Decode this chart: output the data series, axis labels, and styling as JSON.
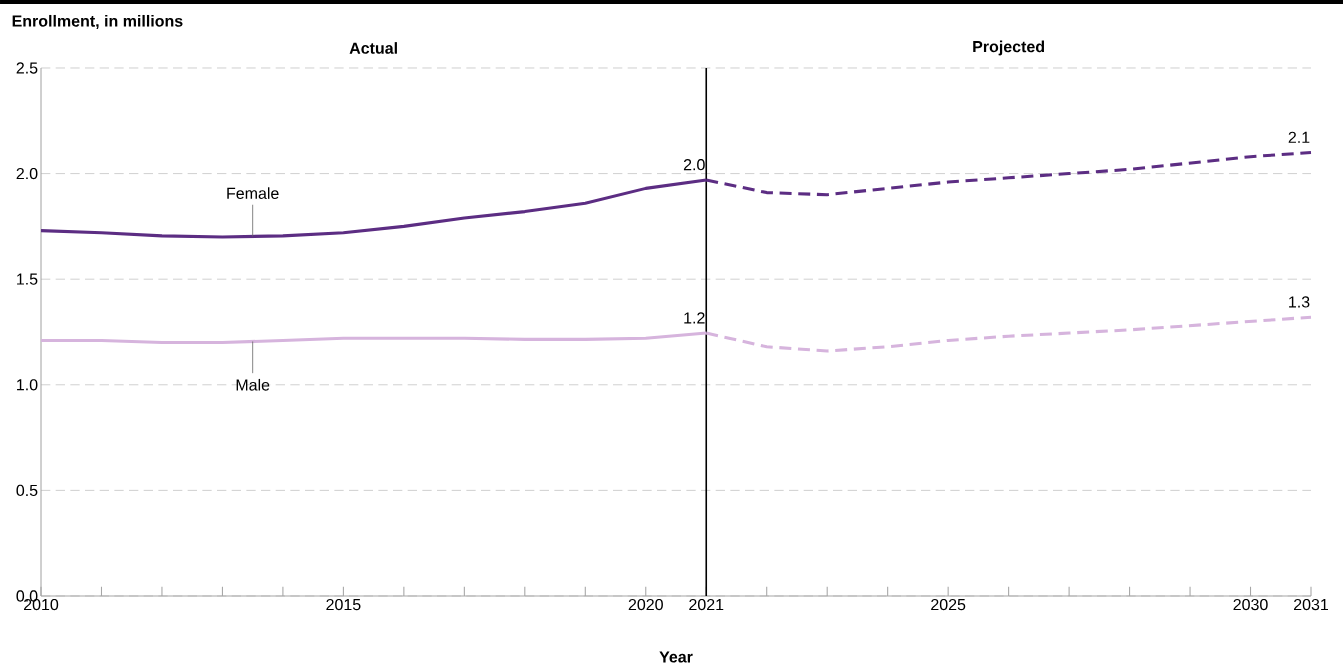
{
  "chart_data": {
    "type": "line",
    "ylabel": "Enrollment, in millions",
    "xlabel": "Year",
    "annotations": [
      "Actual",
      "Projected"
    ],
    "xlim": [
      2010,
      2031
    ],
    "ylim": [
      0,
      2.5
    ],
    "xticks": [
      2010,
      {
        "value": 2011,
        "label": null
      },
      {
        "value": 2012,
        "label": null
      },
      {
        "value": 2013,
        "label": null
      },
      {
        "value": 2014,
        "label": null
      },
      2015,
      {
        "value": 2016,
        "label": null
      },
      {
        "value": 2017,
        "label": null
      },
      {
        "value": 2018,
        "label": null
      },
      {
        "value": 2019,
        "label": null
      },
      2020,
      2021,
      {
        "value": 2022,
        "label": null
      },
      {
        "value": 2023,
        "label": null
      },
      {
        "value": 2024,
        "label": null
      },
      2025,
      {
        "value": 2026,
        "label": null
      },
      {
        "value": 2027,
        "label": null
      },
      {
        "value": 2028,
        "label": null
      },
      {
        "value": 2029,
        "label": null
      },
      2030,
      2031
    ],
    "yticks": [
      {
        "value": 0,
        "label": "0.0"
      },
      {
        "value": 0.5,
        "label": "0.5"
      },
      {
        "value": 1,
        "label": "1.0"
      },
      {
        "value": 1.5,
        "label": "1.5"
      },
      {
        "value": 2,
        "label": "2.0"
      },
      {
        "value": 2.5,
        "label": "2.5"
      }
    ],
    "grid": "y",
    "marker": "none",
    "ref_lines": [
      {
        "axis": "x",
        "value": 2021,
        "color": "#000000"
      }
    ],
    "series": [
      {
        "name": "Female",
        "color": "#5c2d83",
        "line_style": "solid",
        "x": [
          2010,
          2011,
          2012,
          2013,
          2014,
          2015,
          2016,
          2017,
          2018,
          2019,
          2020,
          2021
        ],
        "values": [
          1.73,
          1.72,
          1.705,
          1.7,
          1.705,
          1.72,
          1.75,
          1.79,
          1.82,
          1.86,
          1.93,
          1.97
        ],
        "value_labels": [
          null,
          null,
          null,
          null,
          null,
          null,
          null,
          null,
          null,
          null,
          null,
          "2.0"
        ]
      },
      {
        "color": "#5c2d83",
        "line_style": "dashed",
        "x": [
          2021,
          2022,
          2023,
          2024,
          2025,
          2026,
          2027,
          2028,
          2029,
          2030,
          2031
        ],
        "values": [
          1.97,
          1.91,
          1.9,
          1.93,
          1.96,
          1.98,
          2.0,
          2.02,
          2.05,
          2.08,
          2.1
        ],
        "value_labels": [
          null,
          null,
          null,
          null,
          null,
          null,
          null,
          null,
          null,
          null,
          "2.1"
        ]
      },
      {
        "name": "Male",
        "color": "#d6b4dd",
        "line_style": "solid",
        "x": [
          2010,
          2011,
          2012,
          2013,
          2014,
          2015,
          2016,
          2017,
          2018,
          2019,
          2020,
          2021
        ],
        "values": [
          1.21,
          1.21,
          1.2,
          1.2,
          1.21,
          1.22,
          1.22,
          1.22,
          1.215,
          1.215,
          1.22,
          1.245
        ],
        "value_labels": [
          null,
          null,
          null,
          null,
          null,
          null,
          null,
          null,
          null,
          null,
          null,
          "1.2"
        ]
      },
      {
        "color": "#d6b4dd",
        "line_style": "dashed",
        "x": [
          2021,
          2022,
          2023,
          2024,
          2025,
          2026,
          2027,
          2028,
          2029,
          2030,
          2031
        ],
        "values": [
          1.245,
          1.18,
          1.16,
          1.18,
          1.21,
          1.23,
          1.245,
          1.26,
          1.28,
          1.3,
          1.32
        ],
        "value_labels": [
          null,
          null,
          null,
          null,
          null,
          null,
          null,
          null,
          null,
          null,
          "1.3"
        ]
      }
    ]
  }
}
